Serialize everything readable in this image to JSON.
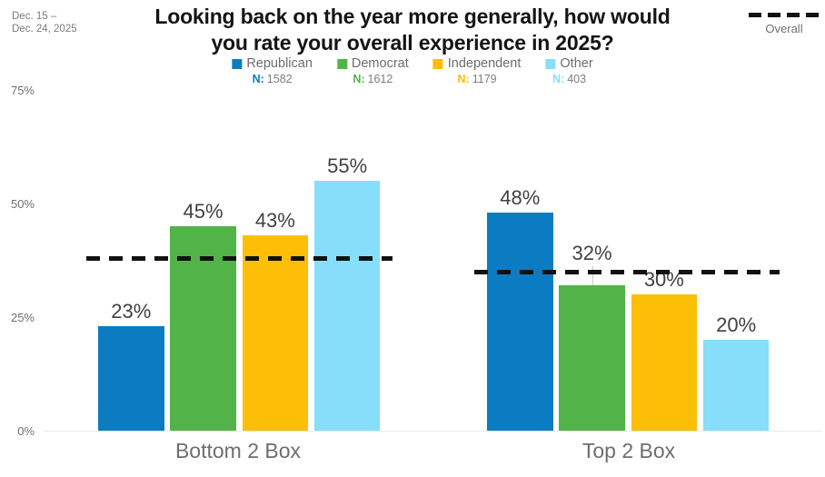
{
  "header": {
    "date_range_line1": "Dec. 15 –",
    "date_range_line2": "Dec. 24, 2025",
    "title_line1": "Looking back on the year more generally, how would",
    "title_line2": "you rate your overall experience in 2025?",
    "overall_legend_label": "Overall"
  },
  "legend": {
    "n_prefix": "N:",
    "items": [
      {
        "label": "Republican",
        "n": "1582",
        "color": "#0b7cc1"
      },
      {
        "label": "Democrat",
        "n": "1612",
        "color": "#52b348"
      },
      {
        "label": "Independent",
        "n": "1179",
        "color": "#fcbe07"
      },
      {
        "label": "Other",
        "n": "403",
        "color": "#86defa"
      }
    ]
  },
  "chart_data": {
    "type": "bar",
    "title": "Looking back on the year more generally, how would you rate your overall experience in 2025?",
    "date_range": "Dec. 15 – Dec. 24, 2025",
    "categories": [
      "Bottom 2 Box",
      "Top 2 Box"
    ],
    "series": [
      {
        "name": "Republican",
        "color": "#0b7cc1",
        "n": 1582,
        "values": [
          23,
          48
        ],
        "leader_line": [
          false,
          false
        ]
      },
      {
        "name": "Democrat",
        "color": "#52b348",
        "n": 1612,
        "values": [
          45,
          32
        ],
        "leader_line": [
          false,
          true
        ]
      },
      {
        "name": "Independent",
        "color": "#fcbe07",
        "n": 1179,
        "values": [
          43,
          30
        ],
        "leader_line": [
          false,
          false
        ]
      },
      {
        "name": "Other",
        "color": "#86defa",
        "n": 403,
        "values": [
          55,
          20
        ],
        "leader_line": [
          false,
          false
        ]
      }
    ],
    "overall_line": {
      "label": "Overall",
      "values": [
        38,
        35
      ],
      "style": "dashed",
      "color": "#111111"
    },
    "value_labels": {
      "format": "percent",
      "bottom_2_box": [
        "23%",
        "45%",
        "43%",
        "55%"
      ],
      "top_2_box": [
        "48%",
        "32%",
        "30%",
        "20%"
      ]
    },
    "y_axis": {
      "ticks": [
        {
          "label": "75%",
          "value": 75
        },
        {
          "label": "50%",
          "value": 50
        },
        {
          "label": "25%",
          "value": 25
        },
        {
          "label": "0%",
          "value": 0
        }
      ],
      "min": 0,
      "max": 75,
      "gridlines": false
    },
    "legend_position": "top"
  }
}
